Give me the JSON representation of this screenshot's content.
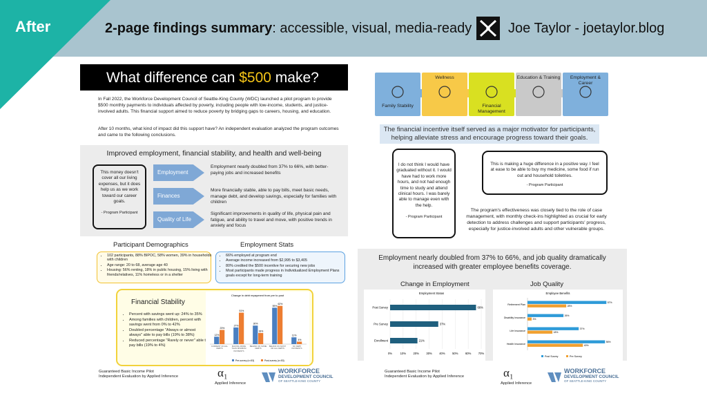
{
  "header": {
    "badge": "After",
    "title_bold": "2-page findings summary",
    "title_rest": ": accessible, visual, media-ready",
    "author": "Joe Taylor - joetaylor.blog"
  },
  "page1": {
    "banner": {
      "before": "What difference can ",
      "highlight": "$500",
      "after": " make?"
    },
    "intro": [
      "In Fall 2022, the Workforce Development Council of Seattle-King County (WDC) launched a pilot program to provide $500 monthly payments to individuals affected by poverty, including people with low-income, students, and justice-involved adults. This financial support aimed to reduce poverty by bridging gaps to careers, housing, and education.",
      "After 10 months, what kind of impact did this support have? An independent evaluation analyzed the program outcomes and came to the following conclusions."
    ],
    "outcomes": {
      "title": "Improved employment, financial stability, and health and well-being",
      "quote": {
        "text": "This money doesn't cover all our living expenses, but it does help us as we work toward our career goals.",
        "attribution": "- Program Participant"
      },
      "items": [
        {
          "label": "Employment",
          "text": "Employment nearly doubled from 37% to 66%, with better-paying jobs and increased benefits"
        },
        {
          "label": "Finances",
          "text": "More financially stable, able to pay bills, meet basic needs, manage debt, and develop savings, especially for families with children"
        },
        {
          "label": "Quality of Life",
          "text": "Significant improvements in quality of life, physical pain and fatigue, and ability to travel and move, with positive trends in anxiety and focus"
        }
      ]
    },
    "demographics": {
      "title": "Participant Demographics",
      "items": [
        "102 participants, 88% BIPOC, 58% women, 39% in households with children",
        "Age range: 20 to 68, average age 40",
        "Housing: 56% renting, 18% in public housing, 15% living with friends/relatives, 11% homeless or in a shelter"
      ]
    },
    "employment_stats": {
      "title": "Employment Stats",
      "items": [
        "66% employed at program end",
        "Average income increased from $2,995 to $3,405",
        "80% credited the $500 incentive for securing new jobs",
        "Most participants made progress in Individualized Employment Plans goals except for long-term training"
      ]
    },
    "financial_stability": {
      "title": "Financial Stability",
      "items": [
        "Percent with savings went up: 24% to 35%",
        "Among families with children, percent with savings went from 0% to 42%",
        "Doubled percentage \"Always or almost always\" able to pay bills (19% to 38%)",
        "Reduced percentage \"Rarely or never\" able to pay bills (19% to 4%)"
      ],
      "chart": {
        "type": "bar",
        "title": "Change in debt repayment from pre to post",
        "categories": [
          "CURRENT ON ALL DEBTS",
          "MAKING MORE THAN MINIMUM PAYMENTS",
          "BEHIND ON SOME DEBTS",
          "BEHIND ON MOST OR ALL DEBTS",
          "NO DEBT PAYMENTS"
        ],
        "series": [
          {
            "name": "Pre-survey (n=53)",
            "color": "#4a7fc1",
            "values": [
              12,
              27,
              30,
              59,
              11
            ],
            "value_labels": [
              "12%",
              "27%",
              "30%",
              "59%",
              "11%"
            ]
          },
          {
            "name": "Post-survey (n=53)",
            "color": "#ed7d31",
            "values": [
              23,
              51,
              18,
              62,
              4
            ],
            "value_labels": [
              "23%",
              "51%",
              "18%",
              "62%",
              "4%"
            ]
          }
        ]
      }
    },
    "footer": {
      "lines": [
        "Guaranteed Basic Income Pilot",
        "Independent Evaluation by Applied Inference"
      ],
      "partner1": {
        "mark": "α₁",
        "name": "Applied Inference"
      },
      "partner2": [
        "WORKFORCE",
        "DEVELOPMENT COUNCIL",
        "OF SEATTLE-KING COUNTY"
      ]
    }
  },
  "page2": {
    "pillars": [
      {
        "label": "Family Stability",
        "color": "#7fb0dc"
      },
      {
        "label": "Wellness",
        "color": "#f7c948"
      },
      {
        "label": "Financial Management",
        "color": "#d9e021"
      },
      {
        "label": "Education & Training",
        "color": "#c9c9c9"
      },
      {
        "label": "Employment & Career",
        "color": "#7fb0dc"
      }
    ],
    "statement": "The financial incentive itself served as a major motivator for participants, helping alleviate stress and encourage progress toward their goals.",
    "quotes": [
      {
        "text": "I do not think I would have graduated without it. I would have had to work more hours, and not had enough time to study and attend clinical hours. I was barely able to manage even with the help.",
        "attribution": "- Program Participant"
      },
      {
        "text": "This is making a huge difference in a positive way. I feel at ease to be able to buy my medicine, some food if run out and household toiletries.",
        "attribution": "- Program Participant"
      }
    ],
    "paragraph": "The program's effectiveness was closely tied to the role of case management, with monthly check-ins highlighted as crucial for early detection to address challenges and support participants' progress, especially for justice-involved adults and other vulnerable groups.",
    "results": {
      "title": "Employment nearly doubled from 37% to 66%, and job quality dramatically increased with greater employee benefits coverage.",
      "employment": {
        "heading": "Change in Employment",
        "chart": {
          "type": "bar",
          "title": "Employment Status",
          "categories": [
            "Post Survey",
            "Pre Survey",
            "Enrollment"
          ],
          "values": [
            66,
            37,
            21
          ],
          "value_labels": [
            "66%",
            "37%",
            "21%"
          ],
          "color": "#1f5f7e",
          "xlim": [
            0,
            70
          ],
          "xticks": [
            {
              "value": 0,
              "label": "0%"
            },
            {
              "value": 10,
              "label": "10%"
            },
            {
              "value": 20,
              "label": "20%"
            },
            {
              "value": 30,
              "label": "30%"
            },
            {
              "value": 40,
              "label": "40%"
            },
            {
              "value": 50,
              "label": "50%"
            },
            {
              "value": 60,
              "label": "60%"
            },
            {
              "value": 70,
              "label": "70%"
            }
          ],
          "grid": true
        }
      },
      "job_quality": {
        "heading": "Job Quality",
        "chart": {
          "type": "bar",
          "title": "Employee Benefits",
          "categories": [
            "Retirement Plan",
            "Disability Insurance",
            "Life Insurance",
            "Health Insurance"
          ],
          "series": [
            {
              "name": "Post Survey",
              "color": "#2e9bd8",
              "values": [
                57,
                26,
                37,
                56
              ],
              "value_labels": [
                "57%",
                "26%",
                "37%",
                "56%"
              ]
            },
            {
              "name": "Pre Survey",
              "color": "#f0a030",
              "values": [
                28,
                3,
                18,
                40
              ],
              "value_labels": [
                "28%",
                "3%",
                "18%",
                "40%"
              ]
            }
          ]
        }
      }
    },
    "footer": {
      "lines": [
        "Guaranteed Basic Income Pilot",
        "Independent Evaluation by Applied Inference"
      ],
      "partner1": {
        "mark": "α₁",
        "name": "Applied Inference"
      },
      "partner2": [
        "WORKFORCE",
        "DEVELOPMENT COUNCIL",
        "OF SEATTLE-KING COUNTY"
      ]
    }
  }
}
